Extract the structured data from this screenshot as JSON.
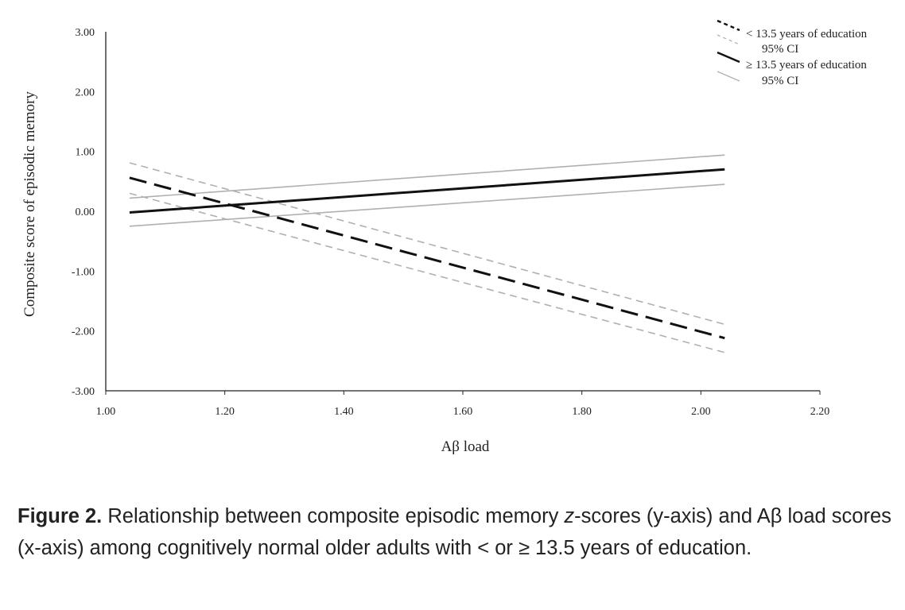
{
  "chart_data": {
    "type": "line",
    "xlabel": "Aβ load",
    "ylabel": "Composite score of episodic memory",
    "xlim": [
      1.0,
      2.2
    ],
    "ylim": [
      -3.0,
      3.0
    ],
    "x_ticks": [
      "1.00",
      "1.20",
      "1.40",
      "1.60",
      "1.80",
      "2.00",
      "2.20"
    ],
    "y_ticks": [
      "3.00",
      "2.00",
      "1.00",
      "0.00",
      "-1.00",
      "-2.00",
      "-3.00"
    ],
    "grid": false,
    "legend_position": "top-right",
    "series": [
      {
        "name": "< 13.5 years of education",
        "color": "#111111",
        "style": "long-dash",
        "x": [
          1.04,
          2.04
        ],
        "y": [
          0.56,
          -2.12
        ]
      },
      {
        "name": "95% CI",
        "color": "#b0b0b0",
        "style": "short-dash",
        "x": [
          1.04,
          2.04
        ],
        "y": [
          0.81,
          -1.89
        ]
      },
      {
        "name": "",
        "color": "#b0b0b0",
        "style": "short-dash",
        "x": [
          1.04,
          2.04
        ],
        "y": [
          0.3,
          -2.36
        ]
      },
      {
        "name": "≥ 13.5 years of education",
        "color": "#111111",
        "style": "solid",
        "x": [
          1.04,
          2.04
        ],
        "y": [
          -0.02,
          0.7
        ]
      },
      {
        "name": "95% CI",
        "color": "#b0b0b0",
        "style": "solid",
        "x": [
          1.04,
          2.04
        ],
        "y": [
          0.22,
          0.94
        ]
      },
      {
        "name": "",
        "color": "#b0b0b0",
        "style": "solid",
        "x": [
          1.04,
          2.04
        ],
        "y": [
          -0.25,
          0.45
        ]
      }
    ]
  },
  "caption": {
    "label": "Figure 2.",
    "text_part1": " Relationship between composite episodic memory ",
    "text_italic": "z",
    "text_part2": "-scores (y-axis) and Aβ load scores (x-axis) among cognitively normal older adults with < or ≥ 13.5 years of education."
  }
}
